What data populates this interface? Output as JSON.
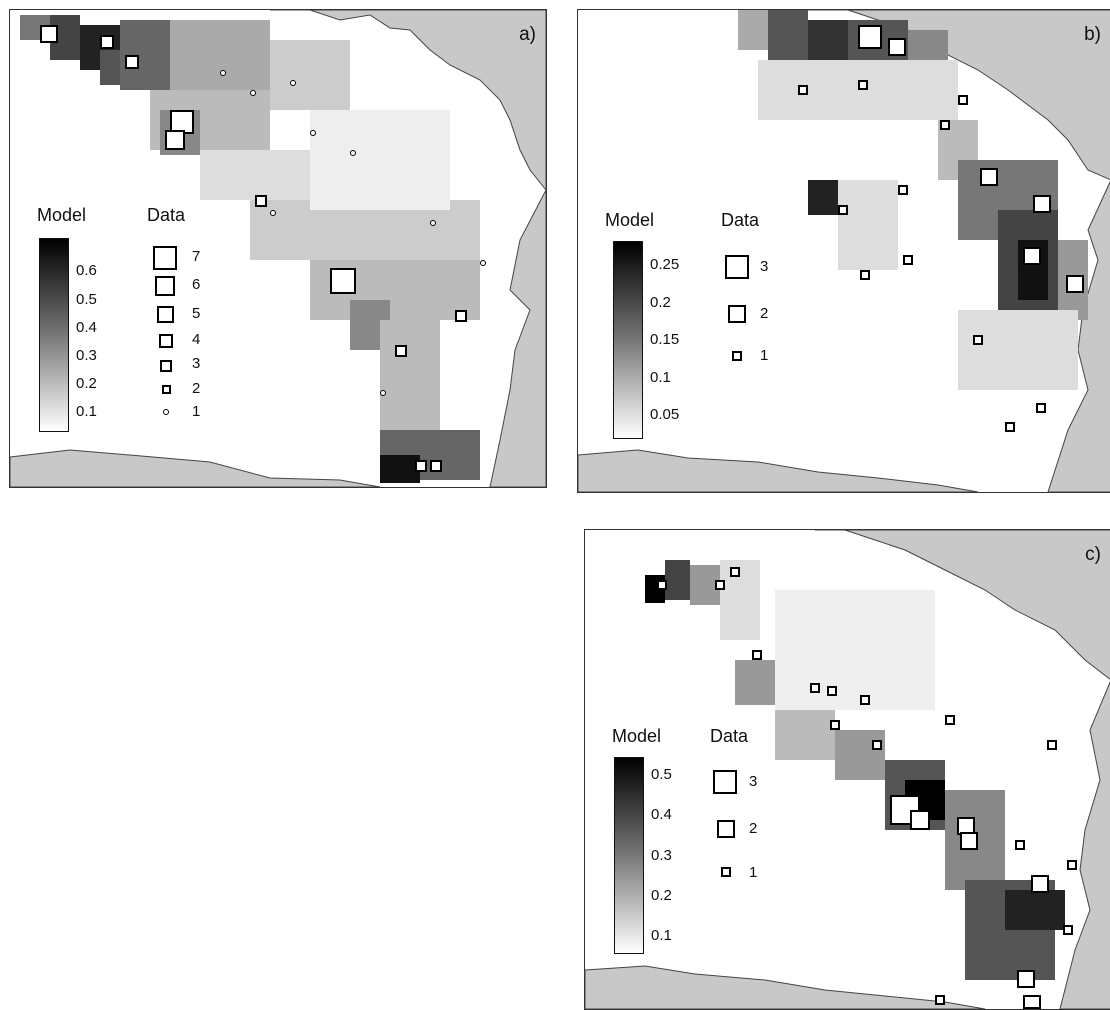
{
  "panels": [
    {
      "id": "a",
      "letter": "a)",
      "model_title": "Model",
      "data_title": "Data",
      "model_ticks": [
        "0.6",
        "0.5",
        "0.4",
        "0.3",
        "0.2",
        "0.1"
      ],
      "data_sizes": [
        "7",
        "6",
        "5",
        "4",
        "3",
        "2",
        "1"
      ]
    },
    {
      "id": "b",
      "letter": "b)",
      "model_title": "Model",
      "data_title": "Data",
      "model_ticks": [
        "0.25",
        "0.2",
        "0.15",
        "0.1",
        "0.05"
      ],
      "data_sizes": [
        "3",
        "2",
        "1"
      ]
    },
    {
      "id": "c",
      "letter": "c)",
      "model_title": "Model",
      "data_title": "Data",
      "model_ticks": [
        "0.5",
        "0.4",
        "0.3",
        "0.2",
        "0.1"
      ],
      "data_sizes": [
        "3",
        "2",
        "1"
      ]
    }
  ],
  "colors": {
    "land": "#c8c8c8",
    "water": "#ffffff",
    "scale_high": "#000000",
    "scale_low": "#ffffff"
  }
}
